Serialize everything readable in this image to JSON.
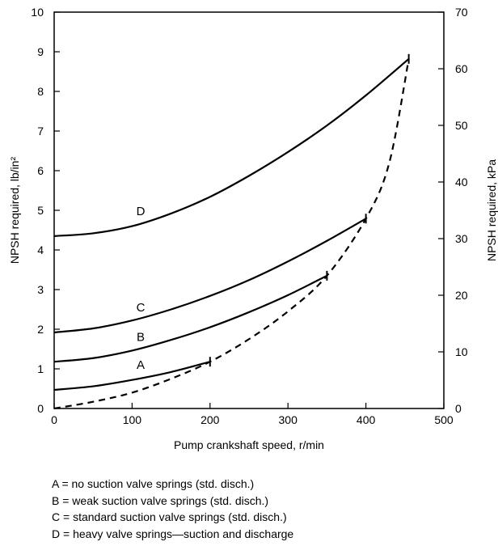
{
  "chart_data": {
    "type": "line",
    "xlabel": "Pump crankshaft speed, r/min",
    "ylabel_left": "NPSH required, lb/in²",
    "ylabel_right": "NPSH required, kPa",
    "xlim": [
      0,
      500
    ],
    "ylim": [
      0,
      10
    ],
    "ylim_right": [
      0,
      70
    ],
    "x_ticks": [
      0,
      100,
      200,
      300,
      400,
      500
    ],
    "y_ticks": [
      0,
      1,
      2,
      3,
      4,
      5,
      6,
      7,
      8,
      9,
      10
    ],
    "y_right_ticks": [
      0,
      10,
      20,
      30,
      40,
      50,
      60,
      70
    ],
    "grid": false,
    "series": [
      {
        "name": "A",
        "style": "solid",
        "x": [
          0,
          50,
          100,
          150,
          200
        ],
        "y": [
          0.47,
          0.56,
          0.72,
          0.92,
          1.18
        ],
        "label_at": [
          111,
          1.0
        ]
      },
      {
        "name": "B",
        "style": "solid",
        "x": [
          0,
          50,
          100,
          150,
          200,
          250,
          300,
          350
        ],
        "y": [
          1.18,
          1.27,
          1.46,
          1.73,
          2.05,
          2.43,
          2.86,
          3.35
        ],
        "label_at": [
          111,
          1.7
        ]
      },
      {
        "name": "C",
        "style": "solid",
        "x": [
          0,
          50,
          100,
          150,
          200,
          250,
          300,
          350,
          400
        ],
        "y": [
          1.92,
          2.02,
          2.22,
          2.5,
          2.84,
          3.24,
          3.71,
          4.23,
          4.79
        ],
        "label_at": [
          111,
          2.45
        ]
      },
      {
        "name": "D",
        "style": "solid",
        "x": [
          0,
          50,
          100,
          150,
          200,
          250,
          300,
          350,
          400,
          455
        ],
        "y": [
          4.35,
          4.42,
          4.6,
          4.92,
          5.34,
          5.87,
          6.47,
          7.14,
          7.9,
          8.82
        ],
        "label_at": [
          111,
          4.88
        ]
      },
      {
        "name": "",
        "style": "dashed",
        "x": [
          0,
          50,
          100,
          150,
          200,
          250,
          300,
          350,
          400,
          430,
          455
        ],
        "y": [
          0.0,
          0.17,
          0.4,
          0.75,
          1.18,
          1.75,
          2.45,
          3.35,
          4.79,
          6.2,
          8.82
        ]
      }
    ],
    "end_ticks": [
      [
        200,
        1.18
      ],
      [
        350,
        3.35
      ],
      [
        400,
        4.79
      ],
      [
        455,
        8.82
      ]
    ]
  },
  "legend": [
    "A = no suction valve springs (std. disch.)",
    "B = weak suction valve springs (std. disch.)",
    "C = standard suction valve springs (std. disch.)",
    "D = heavy valve springs—suction and discharge"
  ]
}
